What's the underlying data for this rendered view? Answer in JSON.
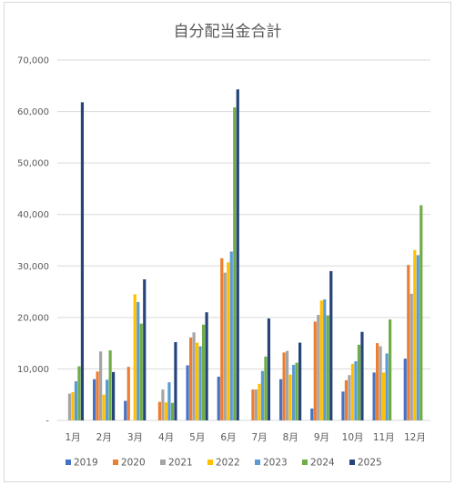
{
  "chart_data": {
    "type": "bar",
    "title": "自分配当金合計",
    "xlabel": "",
    "ylabel": "",
    "ylim": [
      0,
      70000
    ],
    "yticks": [
      0,
      10000,
      20000,
      30000,
      40000,
      50000,
      60000,
      70000
    ],
    "ytick_labels": [
      "-",
      "10,000",
      "20,000",
      "30,000",
      "40,000",
      "50,000",
      "60,000",
      "70,000"
    ],
    "grid": true,
    "legend_position": "bottom",
    "categories": [
      "1月",
      "2月",
      "3月",
      "4月",
      "5月",
      "6月",
      "7月",
      "8月",
      "9月",
      "10月",
      "11月",
      "12月"
    ],
    "series": [
      {
        "name": "2019",
        "color": "#4472c4",
        "values": [
          0,
          8000,
          3800,
          0,
          10700,
          8500,
          0,
          8000,
          2300,
          5600,
          9300,
          12000
        ]
      },
      {
        "name": "2020",
        "color": "#ed7d31",
        "values": [
          0,
          9500,
          10400,
          3600,
          16100,
          31500,
          6000,
          13200,
          19200,
          7800,
          15000,
          30200
        ]
      },
      {
        "name": "2021",
        "color": "#a5a5a5",
        "values": [
          5200,
          13400,
          0,
          6000,
          17100,
          28700,
          6000,
          13500,
          20500,
          8800,
          14400,
          24600
        ]
      },
      {
        "name": "2022",
        "color": "#ffc000",
        "values": [
          5500,
          5000,
          24500,
          3500,
          15100,
          30700,
          7100,
          8900,
          23300,
          11000,
          9300,
          33100
        ]
      },
      {
        "name": "2023",
        "color": "#5b9bd5",
        "values": [
          7600,
          7900,
          23000,
          7400,
          14400,
          32800,
          9600,
          10800,
          23500,
          11500,
          13000,
          32100
        ]
      },
      {
        "name": "2024",
        "color": "#70ad47",
        "values": [
          10500,
          13600,
          18800,
          3400,
          18600,
          60800,
          12400,
          11200,
          20400,
          14700,
          19600,
          41800
        ]
      },
      {
        "name": "2025",
        "color": "#264478",
        "values": [
          61800,
          9400,
          27400,
          15200,
          21000,
          64300,
          19800,
          15100,
          29000,
          17200,
          0,
          0
        ]
      }
    ]
  }
}
